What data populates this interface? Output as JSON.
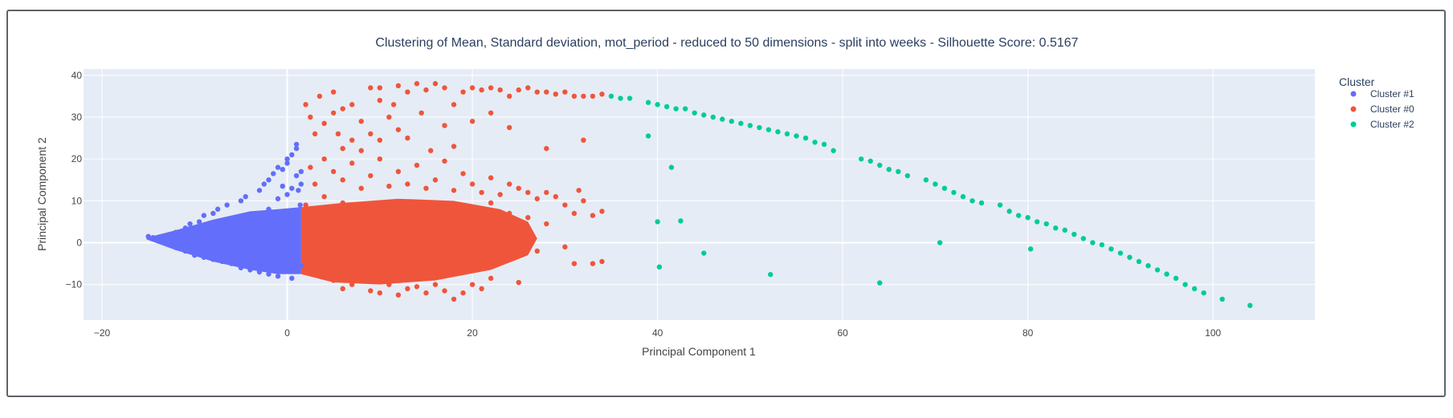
{
  "chart_data": {
    "type": "scatter",
    "title": "Clustering of Mean, Standard deviation, mot_period - reduced to 50 dimensions - split into weeks - Silhouette Score: 0.5167",
    "xlabel": "Principal Component 1",
    "ylabel": "Principal Component 2",
    "xlim": [
      -22,
      111
    ],
    "ylim": [
      -18.5,
      41.5
    ],
    "xticks": [
      -20,
      0,
      20,
      40,
      60,
      80,
      100
    ],
    "yticks": [
      -10,
      0,
      10,
      20,
      30,
      40
    ],
    "grid": true,
    "legend": {
      "title": "Cluster",
      "placement": "top-right",
      "entries": [
        "Cluster #1",
        "Cluster #0",
        "Cluster #2"
      ]
    },
    "series": [
      {
        "name": "Cluster #1",
        "color": "#636efa",
        "points": [
          [
            -15,
            1.5
          ],
          [
            -14.5,
            1.2
          ],
          [
            -14,
            0.8
          ],
          [
            -13.5,
            0.5
          ],
          [
            -13,
            0.2
          ],
          [
            -13,
            1.6
          ],
          [
            -12.5,
            -0.5
          ],
          [
            -12,
            2.5
          ],
          [
            -12,
            -1.2
          ],
          [
            -11,
            3.5
          ],
          [
            -11,
            -2
          ],
          [
            -10.5,
            4.5
          ],
          [
            -10,
            -3
          ],
          [
            -9.5,
            5
          ],
          [
            -9,
            -3.5
          ],
          [
            -9,
            6.5
          ],
          [
            -8,
            7
          ],
          [
            -8,
            -4
          ],
          [
            -7.5,
            8
          ],
          [
            -7,
            -4.5
          ],
          [
            -6.5,
            9
          ],
          [
            -6,
            -5
          ],
          [
            -5,
            10
          ],
          [
            -5,
            -6
          ],
          [
            -4.5,
            11
          ],
          [
            -4,
            -6.5
          ],
          [
            -3,
            12.5
          ],
          [
            -3,
            -7
          ],
          [
            -2.5,
            14
          ],
          [
            -2,
            15
          ],
          [
            -2,
            -7.5
          ],
          [
            -1.5,
            16.5
          ],
          [
            -1,
            18
          ],
          [
            -1,
            -8
          ],
          [
            -0.5,
            17.5
          ],
          [
            0,
            19
          ],
          [
            0,
            20
          ],
          [
            0.5,
            21
          ],
          [
            0.5,
            -8.5
          ],
          [
            1,
            22.5
          ],
          [
            1,
            23.5
          ],
          [
            1,
            16
          ],
          [
            1.2,
            12.5
          ],
          [
            1.5,
            17
          ],
          [
            1.5,
            14
          ],
          [
            0.5,
            13
          ],
          [
            -0.5,
            13.5
          ],
          [
            0,
            11.5
          ],
          [
            -1,
            10.5
          ],
          [
            1.4,
            9
          ],
          [
            -12,
            0
          ],
          [
            -11,
            -0.6
          ],
          [
            -10,
            1
          ],
          [
            -9,
            -1.4
          ],
          [
            -8,
            2
          ],
          [
            -7,
            0.4
          ],
          [
            -6,
            -2.2
          ],
          [
            -5,
            3
          ],
          [
            -4,
            -1
          ],
          [
            -3,
            4.5
          ],
          [
            -2,
            -3
          ],
          [
            -1,
            5.5
          ],
          [
            0,
            -4.5
          ],
          [
            1,
            6
          ],
          [
            1.5,
            -5.5
          ],
          [
            -6,
            4
          ],
          [
            -4,
            6
          ],
          [
            -2,
            8
          ],
          [
            0,
            7.5
          ],
          [
            -8,
            -2.5
          ],
          [
            -5,
            -4
          ],
          [
            -3,
            -5.5
          ],
          [
            -1,
            -6
          ]
        ]
      },
      {
        "name": "Cluster #0",
        "color": "#ef553b",
        "points": [
          [
            2,
            33
          ],
          [
            2.5,
            30
          ],
          [
            3,
            26
          ],
          [
            3.5,
            35
          ],
          [
            4,
            28.5
          ],
          [
            5,
            36
          ],
          [
            5,
            31
          ],
          [
            5.5,
            26
          ],
          [
            6,
            32
          ],
          [
            6,
            22.5
          ],
          [
            7,
            33
          ],
          [
            7,
            24.5
          ],
          [
            8,
            29
          ],
          [
            8,
            22
          ],
          [
            9,
            37
          ],
          [
            9,
            26
          ],
          [
            10,
            37
          ],
          [
            10,
            34
          ],
          [
            10,
            24.5
          ],
          [
            11,
            30
          ],
          [
            11.5,
            33
          ],
          [
            12,
            37.5
          ],
          [
            12,
            27
          ],
          [
            13,
            36
          ],
          [
            13,
            25
          ],
          [
            14,
            38
          ],
          [
            14.5,
            31
          ],
          [
            15,
            36.5
          ],
          [
            15.5,
            22
          ],
          [
            16,
            38
          ],
          [
            17,
            37
          ],
          [
            17,
            28
          ],
          [
            18,
            33
          ],
          [
            18,
            23
          ],
          [
            19,
            36
          ],
          [
            20,
            37
          ],
          [
            20,
            29
          ],
          [
            21,
            36.5
          ],
          [
            22,
            37
          ],
          [
            22,
            31
          ],
          [
            23,
            36.5
          ],
          [
            24,
            35
          ],
          [
            24,
            27.5
          ],
          [
            25,
            36.5
          ],
          [
            26,
            37
          ],
          [
            27,
            36
          ],
          [
            28,
            36
          ],
          [
            28,
            22.5
          ],
          [
            29,
            35.5
          ],
          [
            30,
            36
          ],
          [
            31,
            35
          ],
          [
            32,
            35
          ],
          [
            32,
            24.5
          ],
          [
            33,
            35
          ],
          [
            34,
            35.5
          ],
          [
            2.5,
            18
          ],
          [
            3,
            14
          ],
          [
            4,
            20
          ],
          [
            4,
            11
          ],
          [
            5,
            17
          ],
          [
            6,
            15
          ],
          [
            7,
            19
          ],
          [
            8,
            13
          ],
          [
            9,
            16
          ],
          [
            10,
            20
          ],
          [
            11,
            13.5
          ],
          [
            12,
            17
          ],
          [
            13,
            14
          ],
          [
            14,
            18.5
          ],
          [
            15,
            13
          ],
          [
            16,
            15
          ],
          [
            17,
            19.5
          ],
          [
            18,
            12.5
          ],
          [
            19,
            16.5
          ],
          [
            20,
            14
          ],
          [
            21,
            12
          ],
          [
            22,
            15.5
          ],
          [
            23,
            11.5
          ],
          [
            24,
            14
          ],
          [
            25,
            13
          ],
          [
            26,
            12
          ],
          [
            27,
            10.5
          ],
          [
            28,
            12
          ],
          [
            29,
            11
          ],
          [
            30,
            9
          ],
          [
            31,
            7
          ],
          [
            31.5,
            12.5
          ],
          [
            32,
            10
          ],
          [
            33,
            6.5
          ],
          [
            34,
            7.5
          ],
          [
            2,
            9
          ],
          [
            4,
            8
          ],
          [
            6,
            9.5
          ],
          [
            8,
            8.5
          ],
          [
            10,
            9
          ],
          [
            12,
            8
          ],
          [
            14,
            9.5
          ],
          [
            16,
            8.5
          ],
          [
            18,
            9
          ],
          [
            20,
            8
          ],
          [
            22,
            9.5
          ],
          [
            24,
            7
          ],
          [
            26,
            6
          ],
          [
            28,
            4.5
          ],
          [
            30,
            -1
          ],
          [
            31,
            -5
          ],
          [
            33,
            -5
          ],
          [
            34,
            -4.5
          ],
          [
            2,
            4
          ],
          [
            4,
            5
          ],
          [
            6,
            3
          ],
          [
            8,
            5.5
          ],
          [
            10,
            4
          ],
          [
            12,
            6
          ],
          [
            14,
            3
          ],
          [
            16,
            5
          ],
          [
            18,
            4.5
          ],
          [
            20,
            3
          ],
          [
            22,
            5
          ],
          [
            24,
            2
          ],
          [
            26,
            1
          ],
          [
            27,
            -2
          ],
          [
            2,
            -2
          ],
          [
            4,
            -3
          ],
          [
            6,
            -1
          ],
          [
            8,
            -4
          ],
          [
            10,
            -2
          ],
          [
            12,
            -5
          ],
          [
            14,
            -1
          ],
          [
            16,
            -4
          ],
          [
            18,
            -3
          ],
          [
            20,
            -6
          ],
          [
            22,
            -2
          ],
          [
            24,
            -4
          ],
          [
            25,
            -9.5
          ],
          [
            3,
            -7
          ],
          [
            5,
            -9
          ],
          [
            6,
            -11
          ],
          [
            7,
            -10
          ],
          [
            9,
            -11.5
          ],
          [
            10,
            -12
          ],
          [
            11,
            -10
          ],
          [
            12,
            -12.5
          ],
          [
            13,
            -11
          ],
          [
            14,
            -10.5
          ],
          [
            15,
            -12
          ],
          [
            16,
            -10
          ],
          [
            17,
            -11.5
          ],
          [
            18,
            -13.5
          ],
          [
            19,
            -12
          ],
          [
            20,
            -10
          ],
          [
            21,
            -11
          ],
          [
            22,
            -8.5
          ]
        ]
      },
      {
        "name": "Cluster #2",
        "color": "#00cc96",
        "points": [
          [
            35,
            35
          ],
          [
            36,
            34.5
          ],
          [
            37,
            34.5
          ],
          [
            39,
            33.5
          ],
          [
            40,
            33
          ],
          [
            41,
            32.5
          ],
          [
            42,
            32
          ],
          [
            43,
            32
          ],
          [
            44,
            31
          ],
          [
            45,
            30.5
          ],
          [
            46,
            30
          ],
          [
            47,
            29.5
          ],
          [
            48,
            29
          ],
          [
            49,
            28.5
          ],
          [
            50,
            28
          ],
          [
            51,
            27.5
          ],
          [
            52,
            27
          ],
          [
            53,
            26.5
          ],
          [
            54,
            26
          ],
          [
            55,
            25.5
          ],
          [
            56,
            25
          ],
          [
            57,
            24
          ],
          [
            58,
            23.5
          ],
          [
            59,
            22
          ],
          [
            62,
            20
          ],
          [
            63,
            19.5
          ],
          [
            64,
            18.5
          ],
          [
            65,
            17.5
          ],
          [
            66,
            17
          ],
          [
            67,
            16
          ],
          [
            69,
            15
          ],
          [
            70,
            14
          ],
          [
            71,
            13
          ],
          [
            72,
            12
          ],
          [
            73,
            11
          ],
          [
            74,
            10
          ],
          [
            75,
            9.5
          ],
          [
            77,
            9
          ],
          [
            78,
            7.5
          ],
          [
            79,
            6.5
          ],
          [
            80,
            6
          ],
          [
            81,
            5
          ],
          [
            82,
            4.5
          ],
          [
            83,
            3.5
          ],
          [
            84,
            3
          ],
          [
            85,
            2
          ],
          [
            86,
            1
          ],
          [
            87,
            0
          ],
          [
            88,
            -0.5
          ],
          [
            89,
            -1.5
          ],
          [
            90,
            -2.5
          ],
          [
            91,
            -3.5
          ],
          [
            92,
            -4.5
          ],
          [
            93,
            -5.5
          ],
          [
            94,
            -6.5
          ],
          [
            95,
            -7.5
          ],
          [
            96,
            -8.5
          ],
          [
            97,
            -10
          ],
          [
            98,
            -11
          ],
          [
            99,
            -12
          ],
          [
            101,
            -13.5
          ],
          [
            104,
            -15
          ],
          [
            39,
            25.5
          ],
          [
            41.5,
            18
          ],
          [
            40,
            5
          ],
          [
            42.5,
            5.2
          ],
          [
            45,
            -2.5
          ],
          [
            40.2,
            -5.8
          ],
          [
            52.2,
            -7.6
          ],
          [
            64,
            -9.6
          ],
          [
            70.5,
            0
          ],
          [
            80.3,
            -1.5
          ]
        ]
      }
    ]
  }
}
